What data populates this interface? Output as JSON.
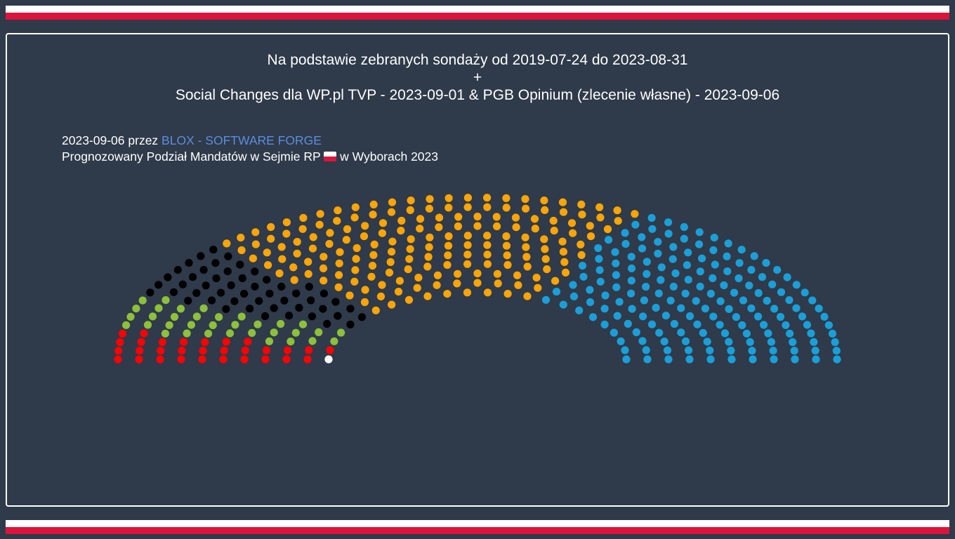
{
  "header": {
    "line1": "Na podstawie zebranych sondaży od 2019-07-24 do 2023-08-31",
    "line2": "+",
    "line3": "Social Changes dla WP.pl TVP - 2023-09-01 & PGB Opinium (zlecenie własne) - 2023-09-06"
  },
  "info": {
    "date_prefix": "2023-09-06 przez",
    "author_link": "BLOX - SOFTWARE FORGE",
    "subtitle_before": "Prognozowany Podział Mandatów w Sejmie RP",
    "subtitle_after": "w Wyborach 2023"
  },
  "colors": {
    "background": "#2f3a4a",
    "flag_white": "#ffffff",
    "flag_red": "#dc143c",
    "link": "#5b8ede"
  },
  "chart_data": {
    "type": "parliament",
    "total_seats": 460,
    "series": [
      {
        "values": [
          1
        ],
        "color": "#ffffff"
      },
      {
        "values": [
          30
        ],
        "color": "#ff0000"
      },
      {
        "values": [
          34
        ],
        "color": "#8dc03b"
      },
      {
        "values": [
          50
        ],
        "color": "#000000"
      },
      {
        "values": [
          179
        ],
        "color": "#ffa500"
      },
      {
        "values": [
          166
        ],
        "color": "#1a9fd8"
      }
    ]
  }
}
